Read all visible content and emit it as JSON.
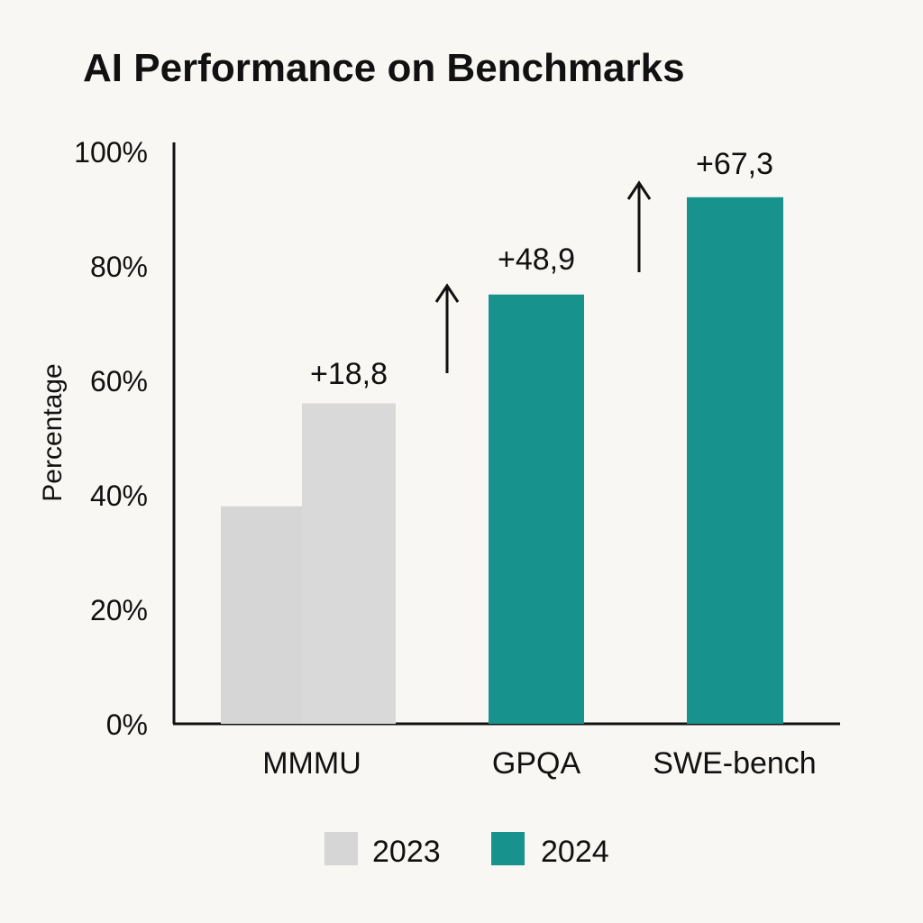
{
  "chart_data": {
    "type": "bar",
    "title": "AI Performance on Benchmarks",
    "ylabel": "Percentage",
    "xlabel": "",
    "ylim": [
      0,
      100
    ],
    "yticks": [
      "0%",
      "20%",
      "40%",
      "60%",
      "80%",
      "100%"
    ],
    "yticks_values": [
      0,
      20,
      40,
      60,
      80,
      100
    ],
    "categories": [
      "MMMU",
      "GPQA",
      "SWE-bench"
    ],
    "series": [
      {
        "name": "2023",
        "color": "#d6d6d6",
        "values": [
          38,
          null,
          null
        ]
      },
      {
        "name": "2024",
        "color": "#17928c",
        "values": [
          56,
          75,
          92
        ]
      }
    ],
    "special_colors": {
      "MMMU_2024": "#d9d9d9"
    },
    "annotations": [
      "+18,8",
      "+48,9",
      "+67,3"
    ],
    "legend": [
      "2023",
      "2024"
    ],
    "legend_position": "bottom"
  }
}
